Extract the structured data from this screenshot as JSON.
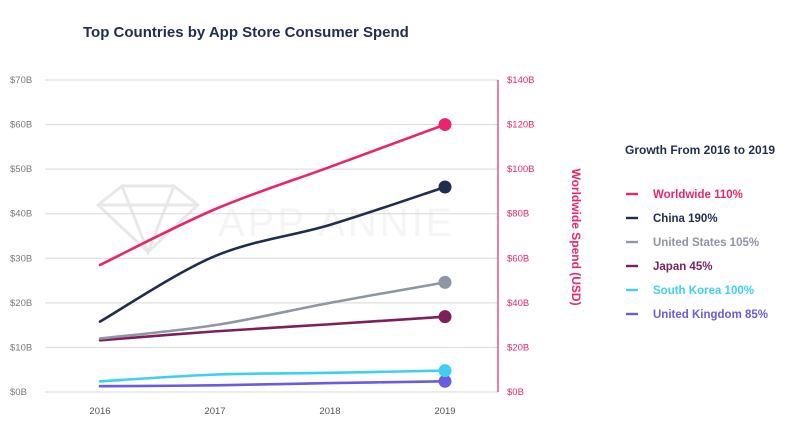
{
  "chart_data": {
    "type": "line",
    "title": "Top Countries by App Store Consumer Spend",
    "categories": [
      "2016",
      "2017",
      "2018",
      "2019"
    ],
    "y_left": {
      "ticks": [
        "$0B",
        "$10B",
        "$20B",
        "$30B",
        "$40B",
        "$50B",
        "$60B",
        "$70B"
      ],
      "ylim": [
        0,
        70
      ]
    },
    "y_right": {
      "label": "Worldwide Spend (USD)",
      "ticks": [
        "$0B",
        "$20B",
        "$40B",
        "$60B",
        "$80B",
        "$100B",
        "$120B",
        "$140B"
      ],
      "ylim": [
        0,
        140
      ]
    },
    "grid": true,
    "watermark": "APP ANNIE",
    "legend": {
      "title": "Growth From 2016 to 2019",
      "placement": "right"
    },
    "series": [
      {
        "name": "Worldwide",
        "growth": "110%",
        "label": "Worldwide 110%",
        "axis": "right",
        "color": "#e8266f",
        "values": [
          57,
          82,
          101,
          120
        ]
      },
      {
        "name": "China",
        "growth": "190%",
        "label": "China 190%",
        "axis": "left",
        "color": "#1f2d4f",
        "values": [
          15.8,
          30.5,
          37.5,
          46
        ]
      },
      {
        "name": "United States",
        "growth": "105%",
        "label": "United States 105%",
        "axis": "left",
        "color": "#8e95a3",
        "values": [
          12,
          15,
          20,
          24.6
        ]
      },
      {
        "name": "Japan",
        "growth": "45%",
        "label": "Japan 45%",
        "axis": "left",
        "color": "#7d1f5a",
        "values": [
          11.6,
          13.6,
          15.2,
          16.9
        ]
      },
      {
        "name": "South Korea",
        "growth": "100%",
        "label": "South Korea 100%",
        "axis": "left",
        "color": "#3fd0ef",
        "values": [
          2.4,
          3.9,
          4.3,
          4.8
        ]
      },
      {
        "name": "United Kingdom",
        "growth": "85%",
        "label": "United Kingdom 85%",
        "axis": "left",
        "color": "#6a5be0",
        "values": [
          1.3,
          1.5,
          2.0,
          2.4
        ]
      }
    ]
  }
}
